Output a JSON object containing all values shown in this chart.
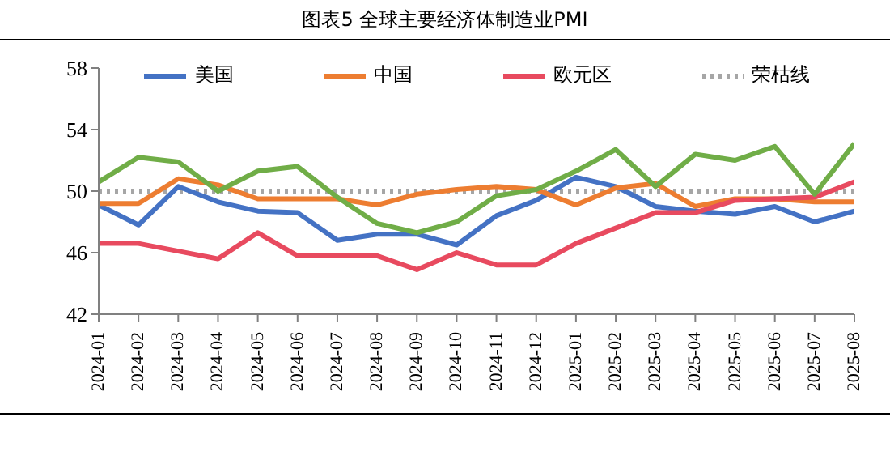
{
  "chart_data": {
    "type": "line",
    "title": "图表5  全球主要经济体制造业PMI",
    "categories": [
      "2024-01",
      "2024-02",
      "2024-03",
      "2024-04",
      "2024-05",
      "2024-06",
      "2024-07",
      "2024-08",
      "2024-09",
      "2024-10",
      "2024-11",
      "2024-12",
      "2025-01",
      "2025-02",
      "2025-03",
      "2025-04",
      "2025-05",
      "2025-06",
      "2025-07",
      "2025-08"
    ],
    "series": [
      {
        "name": "美国",
        "color": "#4472c4",
        "values": [
          49.1,
          47.8,
          50.3,
          49.3,
          48.7,
          48.6,
          46.8,
          47.2,
          47.2,
          46.5,
          48.4,
          49.4,
          50.9,
          50.3,
          49.0,
          48.7,
          48.5,
          49.0,
          48.0,
          48.7
        ]
      },
      {
        "name": "中国",
        "color": "#ed7d31",
        "values": [
          49.2,
          49.2,
          50.8,
          50.4,
          49.5,
          49.5,
          49.5,
          49.1,
          49.8,
          50.1,
          50.3,
          50.1,
          49.1,
          50.2,
          50.5,
          49.0,
          49.5,
          49.5,
          49.3,
          49.3
        ]
      },
      {
        "name": "欧元区",
        "color": "#e84a5f",
        "values": [
          46.6,
          46.6,
          46.1,
          45.6,
          47.3,
          45.8,
          45.8,
          45.8,
          44.9,
          46.0,
          45.2,
          45.2,
          46.6,
          47.6,
          48.6,
          48.6,
          49.4,
          49.5,
          49.6,
          50.6
        ]
      },
      {
        "color": "#70ad47",
        "values": [
          50.6,
          52.2,
          51.9,
          50.0,
          51.3,
          51.6,
          49.6,
          47.9,
          47.3,
          48.0,
          49.7,
          50.1,
          51.3,
          52.7,
          50.3,
          52.4,
          52.0,
          52.9,
          49.8,
          53.1
        ]
      }
    ],
    "ref_lines": [
      {
        "axis": "y",
        "value": 50,
        "label": "荣枯线",
        "color": "#a6a6a6",
        "line_style": "dotted"
      }
    ],
    "ylim": [
      42,
      58
    ],
    "yticks": [
      42,
      46,
      50,
      54,
      58
    ],
    "grid": false,
    "legend": "top",
    "line_style": "solid",
    "marker": "none"
  }
}
